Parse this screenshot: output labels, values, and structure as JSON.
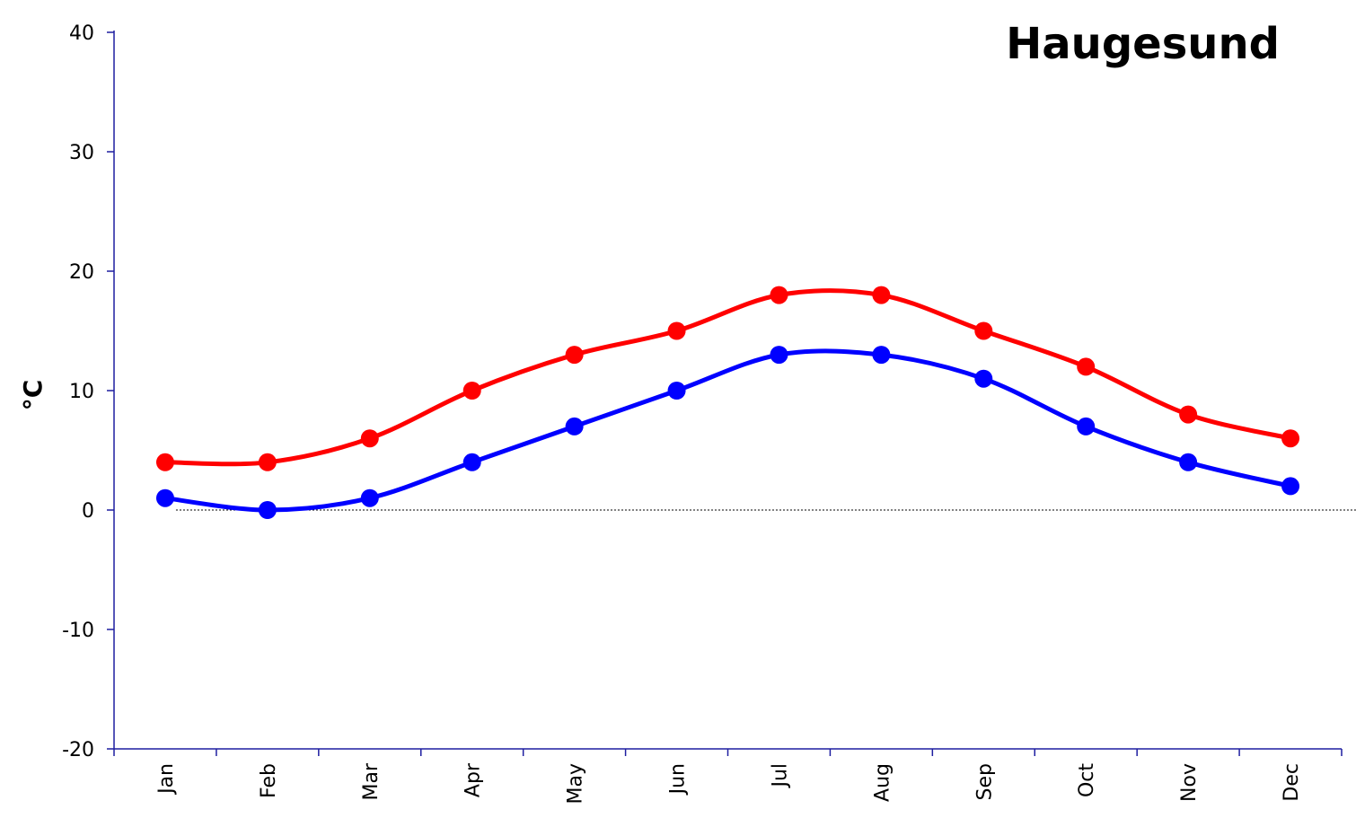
{
  "chart_data": {
    "type": "line",
    "title": "Haugesund",
    "ylabel": "°C",
    "xlabel": "",
    "ylim": [
      -20,
      40
    ],
    "yticks": [
      -20,
      -10,
      0,
      10,
      20,
      30,
      40
    ],
    "categories": [
      "Jan",
      "Feb",
      "Mar",
      "Apr",
      "May",
      "Jun",
      "Jul",
      "Aug",
      "Sep",
      "Oct",
      "Nov",
      "Dec"
    ],
    "series": [
      {
        "color": "#ff0000",
        "values": [
          4,
          4,
          6,
          10,
          13,
          15,
          18,
          18,
          15,
          12,
          8,
          6
        ]
      },
      {
        "color": "#0000ff",
        "values": [
          1,
          0,
          1,
          4,
          7,
          10,
          13,
          13,
          11,
          7,
          4,
          2
        ]
      }
    ],
    "zero_line": true,
    "grid": false,
    "legend": "none"
  }
}
